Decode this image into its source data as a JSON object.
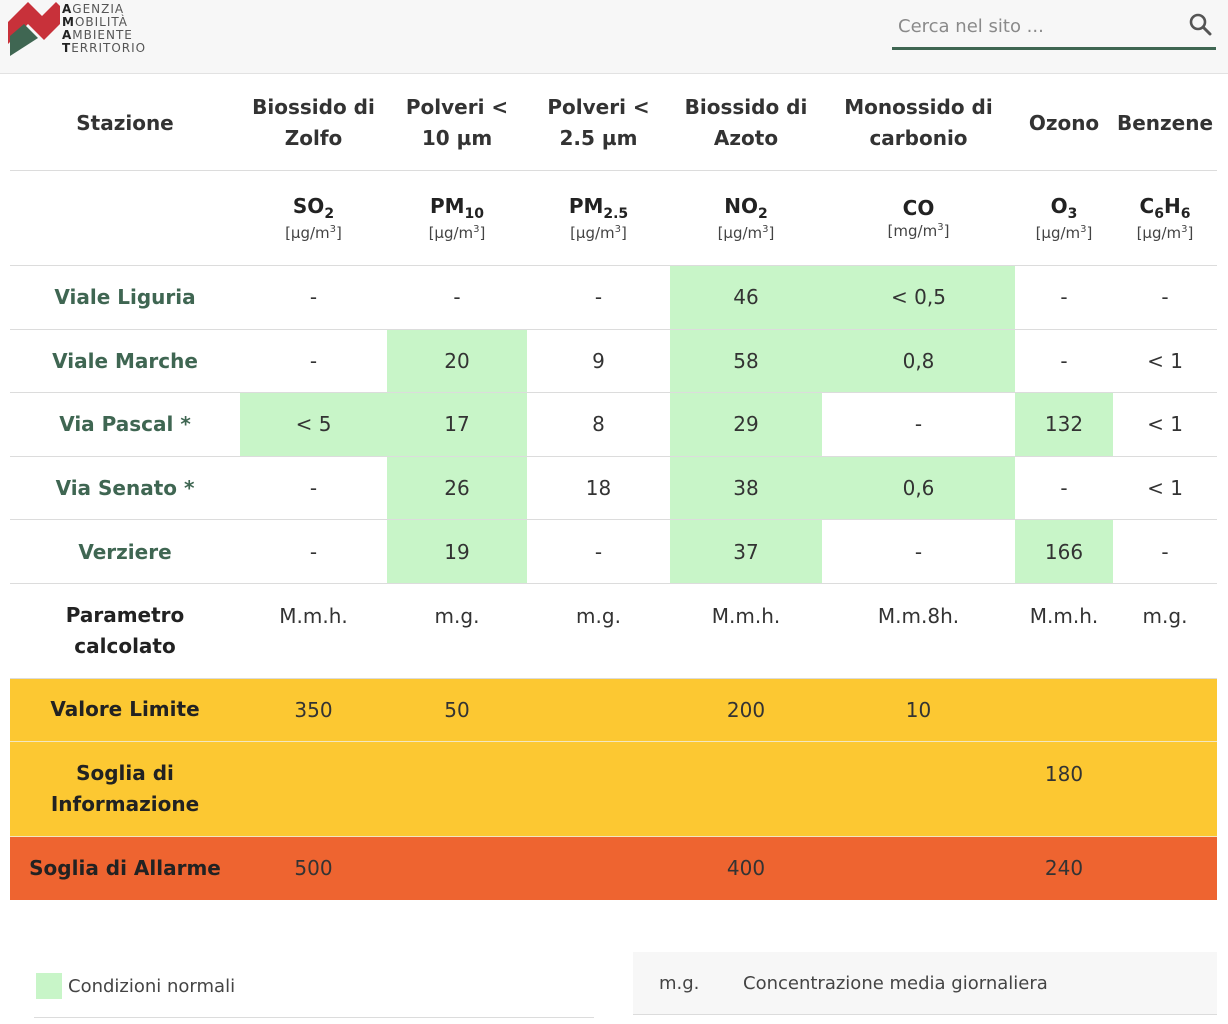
{
  "header": {
    "logo": {
      "lines": [
        {
          "initial": "A",
          "rest": "GENZIA"
        },
        {
          "initial": "M",
          "rest": "OBILITÀ"
        },
        {
          "initial": "A",
          "rest": "MBIENTE"
        },
        {
          "initial": "T",
          "rest": "ERRITORIO"
        }
      ],
      "colors": {
        "red": "#c8313a",
        "green": "#3f6652"
      }
    },
    "search": {
      "placeholder": "Cerca nel sito ...",
      "value": "",
      "icon": "search-icon"
    }
  },
  "table": {
    "headers": [
      "Stazione",
      "Biossido di Zolfo",
      "Polveri < 10 µm",
      "Polveri < 2.5 µm",
      "Biossido di Azoto",
      "Monossido di carbonio",
      "Ozono",
      "Benzene"
    ],
    "pollutants": [
      {
        "base": "SO",
        "sub": "2",
        "unit_prefix": "[µg/m",
        "unit_sup": "3",
        "unit_suffix": "]"
      },
      {
        "base": "PM",
        "sub": "10",
        "unit_prefix": "[µg/m",
        "unit_sup": "3",
        "unit_suffix": "]"
      },
      {
        "base": "PM",
        "sub": "2.5",
        "unit_prefix": "[µg/m",
        "unit_sup": "3",
        "unit_suffix": "]"
      },
      {
        "base": "NO",
        "sub": "2",
        "unit_prefix": "[µg/m",
        "unit_sup": "3",
        "unit_suffix": "]"
      },
      {
        "base": "CO",
        "sub": "",
        "unit_prefix": "[mg/m",
        "unit_sup": "3",
        "unit_suffix": "]"
      },
      {
        "base": "O",
        "sub": "3",
        "unit_prefix": "[µg/m",
        "unit_sup": "3",
        "unit_suffix": "]"
      },
      {
        "base": "C",
        "sub": "6",
        "base2": "H",
        "sub2": "6",
        "unit_prefix": "[µg/m",
        "unit_sup": "3",
        "unit_suffix": "]"
      }
    ],
    "rows": [
      {
        "station": "Viale Liguria",
        "values": [
          "-",
          "-",
          "-",
          "46",
          "< 0,5",
          "-",
          "-"
        ],
        "normal": [
          false,
          false,
          false,
          true,
          true,
          false,
          false
        ]
      },
      {
        "station": "Viale Marche",
        "values": [
          "-",
          "20",
          "9",
          "58",
          "0,8",
          "-",
          "< 1"
        ],
        "normal": [
          false,
          true,
          false,
          true,
          true,
          false,
          false
        ]
      },
      {
        "station": "Via Pascal *",
        "values": [
          "< 5",
          "17",
          "8",
          "29",
          "-",
          "132",
          "< 1"
        ],
        "normal": [
          true,
          true,
          false,
          true,
          false,
          true,
          false
        ]
      },
      {
        "station": "Via Senato *",
        "values": [
          "-",
          "26",
          "18",
          "38",
          "0,6",
          "-",
          "< 1"
        ],
        "normal": [
          false,
          true,
          false,
          true,
          true,
          false,
          false
        ]
      },
      {
        "station": "Verziere",
        "values": [
          "-",
          "19",
          "-",
          "37",
          "-",
          "166",
          "-"
        ],
        "normal": [
          false,
          true,
          false,
          true,
          false,
          true,
          false
        ]
      }
    ],
    "parameter": {
      "label": "Parametro calcolato",
      "values": [
        "M.m.h.",
        "m.g.",
        "m.g.",
        "M.m.h.",
        "M.m.8h.",
        "M.m.h.",
        "m.g."
      ]
    },
    "thresholds": [
      {
        "label": "Valore Limite",
        "values": [
          "350",
          "50",
          "",
          "200",
          "10",
          "",
          ""
        ],
        "color": "#fcc832"
      },
      {
        "label": "Soglia di Informazione",
        "values": [
          "",
          "",
          "",
          "",
          "",
          "180",
          ""
        ],
        "color": "#fcc832"
      },
      {
        "label": "Soglia di Allarme",
        "values": [
          "500",
          "",
          "",
          "400",
          "",
          "240",
          ""
        ],
        "color": "#ee6430"
      }
    ],
    "colors": {
      "normal": "#c8f5c8",
      "station_text": "#3f6652"
    }
  },
  "legend": {
    "normal_label": "Condizioni normali",
    "abbr": "m.g.",
    "abbr_desc": "Concentrazione media giornaliera"
  }
}
